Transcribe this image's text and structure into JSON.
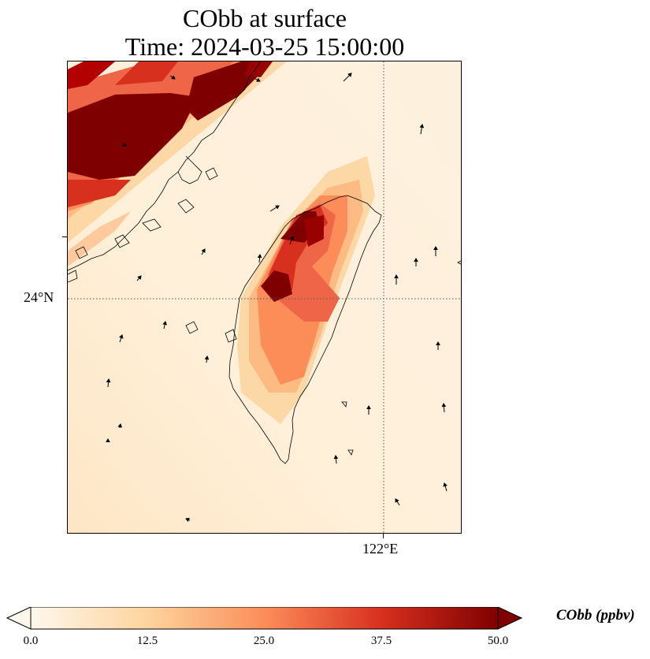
{
  "title": {
    "line1": "CObb at surface",
    "line2": "Time: 2024-03-25 15:00:00"
  },
  "map": {
    "lat_tick": "24°N",
    "lon_tick": "122°E",
    "gridlines": "dotted",
    "features": [
      "coastline",
      "wind-vectors",
      "concentration-field"
    ]
  },
  "colorbar": {
    "title": "CObb (ppbv)",
    "ticks": [
      "0.0",
      "12.5",
      "25.0",
      "37.5",
      "50.0"
    ],
    "range": [
      0,
      50
    ],
    "extend": "both",
    "colormap": "OrRd",
    "colors": [
      "#fff7ec",
      "#fdd49e",
      "#fc8d59",
      "#d7301f",
      "#7f0000"
    ]
  }
}
